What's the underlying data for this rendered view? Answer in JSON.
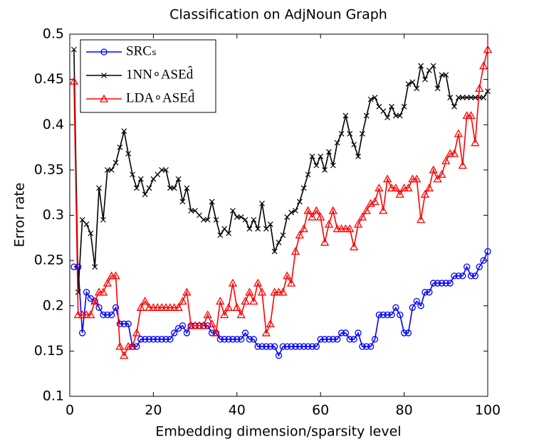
{
  "chart_data": {
    "type": "line",
    "title": "Classification on AdjNoun Graph",
    "x_label": "Embedding dimension/sparsity level",
    "y_label": "Error rate",
    "x": [
      1,
      2,
      3,
      4,
      5,
      6,
      7,
      8,
      9,
      10,
      11,
      12,
      13,
      14,
      15,
      16,
      17,
      18,
      19,
      20,
      21,
      22,
      23,
      24,
      25,
      26,
      27,
      28,
      29,
      30,
      31,
      32,
      33,
      34,
      35,
      36,
      37,
      38,
      39,
      40,
      41,
      42,
      43,
      44,
      45,
      46,
      47,
      48,
      49,
      50,
      51,
      52,
      53,
      54,
      55,
      56,
      57,
      58,
      59,
      60,
      61,
      62,
      63,
      64,
      65,
      66,
      67,
      68,
      69,
      70,
      71,
      72,
      73,
      74,
      75,
      76,
      77,
      78,
      79,
      80,
      81,
      82,
      83,
      84,
      85,
      86,
      87,
      88,
      89,
      90,
      91,
      92,
      93,
      94,
      95,
      96,
      97,
      98,
      99,
      100
    ],
    "series": [
      {
        "name": "SRCₛ",
        "color": "#0000ff",
        "marker": "o",
        "values": [
          0.243,
          0.243,
          0.17,
          0.215,
          0.208,
          0.205,
          0.198,
          0.19,
          0.19,
          0.19,
          0.198,
          0.18,
          0.18,
          0.18,
          0.155,
          0.155,
          0.163,
          0.163,
          0.163,
          0.163,
          0.163,
          0.163,
          0.163,
          0.163,
          0.17,
          0.175,
          0.178,
          0.17,
          0.178,
          0.178,
          0.178,
          0.178,
          0.178,
          0.17,
          0.17,
          0.163,
          0.163,
          0.163,
          0.163,
          0.163,
          0.163,
          0.17,
          0.163,
          0.163,
          0.155,
          0.155,
          0.155,
          0.155,
          0.155,
          0.145,
          0.155,
          0.155,
          0.155,
          0.155,
          0.155,
          0.155,
          0.155,
          0.155,
          0.155,
          0.163,
          0.163,
          0.163,
          0.163,
          0.163,
          0.17,
          0.17,
          0.163,
          0.163,
          0.17,
          0.155,
          0.155,
          0.155,
          0.163,
          0.19,
          0.19,
          0.19,
          0.19,
          0.198,
          0.19,
          0.17,
          0.17,
          0.198,
          0.205,
          0.2,
          0.215,
          0.215,
          0.225,
          0.225,
          0.225,
          0.225,
          0.225,
          0.233,
          0.233,
          0.233,
          0.243,
          0.233,
          0.233,
          0.243,
          0.25,
          0.26
        ]
      },
      {
        "name": "1NN∘ASEd̂",
        "color": "#000000",
        "marker": "x",
        "values": [
          0.483,
          0.215,
          0.295,
          0.29,
          0.28,
          0.243,
          0.33,
          0.295,
          0.35,
          0.35,
          0.358,
          0.375,
          0.393,
          0.368,
          0.345,
          0.33,
          0.34,
          0.323,
          0.33,
          0.34,
          0.345,
          0.35,
          0.35,
          0.33,
          0.33,
          0.34,
          0.315,
          0.33,
          0.305,
          0.305,
          0.3,
          0.295,
          0.295,
          0.315,
          0.295,
          0.278,
          0.285,
          0.28,
          0.305,
          0.298,
          0.298,
          0.295,
          0.285,
          0.295,
          0.285,
          0.313,
          0.285,
          0.29,
          0.26,
          0.27,
          0.278,
          0.298,
          0.303,
          0.305,
          0.315,
          0.33,
          0.345,
          0.365,
          0.355,
          0.365,
          0.35,
          0.37,
          0.355,
          0.38,
          0.39,
          0.41,
          0.39,
          0.378,
          0.365,
          0.39,
          0.41,
          0.428,
          0.43,
          0.42,
          0.415,
          0.408,
          0.42,
          0.41,
          0.41,
          0.42,
          0.445,
          0.447,
          0.44,
          0.465,
          0.45,
          0.46,
          0.465,
          0.44,
          0.455,
          0.455,
          0.43,
          0.42,
          0.43,
          0.43,
          0.43,
          0.43,
          0.43,
          0.43,
          0.43,
          0.437
        ]
      },
      {
        "name": "LDA∘ASEd̂",
        "color": "#ff0000",
        "marker": "^",
        "values": [
          0.448,
          0.19,
          0.19,
          0.19,
          0.19,
          0.205,
          0.215,
          0.215,
          0.225,
          0.233,
          0.233,
          0.155,
          0.145,
          0.155,
          0.155,
          0.17,
          0.198,
          0.205,
          0.198,
          0.198,
          0.198,
          0.198,
          0.198,
          0.198,
          0.198,
          0.198,
          0.205,
          0.215,
          0.178,
          0.178,
          0.178,
          0.178,
          0.19,
          0.18,
          0.17,
          0.205,
          0.19,
          0.198,
          0.225,
          0.198,
          0.19,
          0.205,
          0.215,
          0.205,
          0.225,
          0.215,
          0.17,
          0.18,
          0.215,
          0.215,
          0.215,
          0.233,
          0.225,
          0.26,
          0.278,
          0.285,
          0.305,
          0.298,
          0.305,
          0.298,
          0.27,
          0.29,
          0.305,
          0.285,
          0.285,
          0.285,
          0.285,
          0.265,
          0.29,
          0.298,
          0.305,
          0.313,
          0.315,
          0.33,
          0.305,
          0.34,
          0.33,
          0.33,
          0.323,
          0.33,
          0.33,
          0.34,
          0.34,
          0.295,
          0.323,
          0.33,
          0.35,
          0.34,
          0.345,
          0.36,
          0.368,
          0.368,
          0.39,
          0.355,
          0.41,
          0.41,
          0.38,
          0.44,
          0.465,
          0.483
        ]
      }
    ],
    "xlim": [
      0,
      100
    ],
    "xticks": [
      0,
      20,
      40,
      60,
      80,
      100
    ],
    "ylim": [
      0.1,
      0.5
    ],
    "yticks": [
      0.1,
      0.15,
      0.2,
      0.25,
      0.3,
      0.35,
      0.4,
      0.45,
      0.5
    ],
    "grid": false,
    "legend": "upper left"
  }
}
